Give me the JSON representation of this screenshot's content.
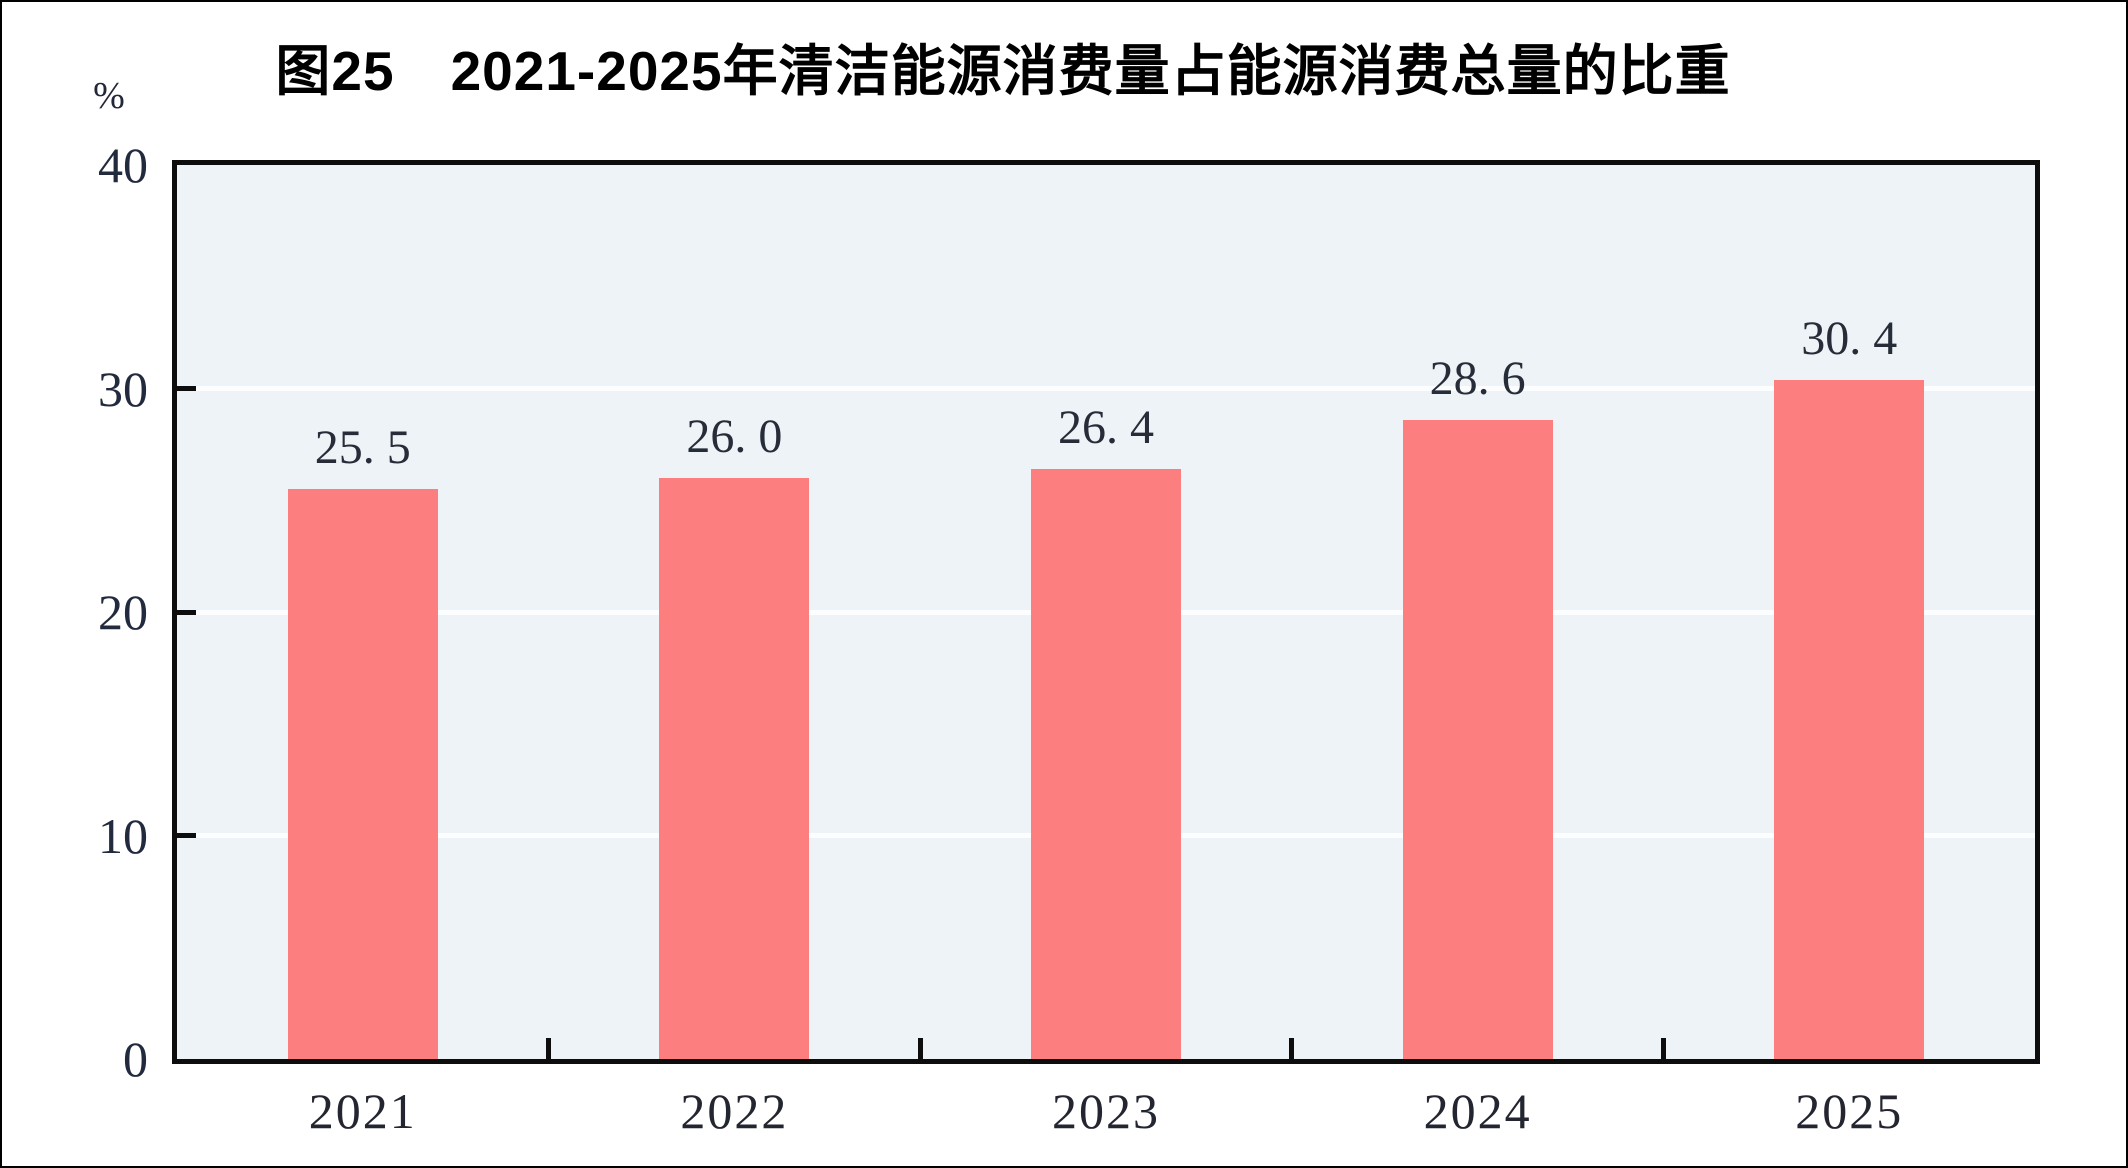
{
  "figure": {
    "title": "图25　2021-2025年清洁能源消费量占能源消费总量的比重",
    "unit_label": "%"
  },
  "chart_data": {
    "type": "bar",
    "title": "图25　2021-2025年清洁能源消费量占能源消费总量的比重",
    "categories": [
      "2021",
      "2022",
      "2023",
      "2024",
      "2025"
    ],
    "values": [
      25.5,
      26.0,
      26.4,
      28.6,
      30.4
    ],
    "value_labels": [
      "25. 5",
      "26. 0",
      "26. 4",
      "28. 6",
      "30. 4"
    ],
    "xlabel": "",
    "ylabel": "%",
    "ylim": [
      0,
      40
    ],
    "yticks": [
      0,
      10,
      20,
      30,
      40
    ],
    "ytick_labels": [
      "0",
      "10",
      "20",
      "30",
      "40"
    ],
    "grid": true,
    "legend": false,
    "colors": {
      "bar": "#FC7E7E",
      "plot_background": "#EDF3F6",
      "gridline": "#FBFDFE",
      "axis": "#0d0d0d",
      "text": "#232630",
      "title": "#000000"
    }
  }
}
